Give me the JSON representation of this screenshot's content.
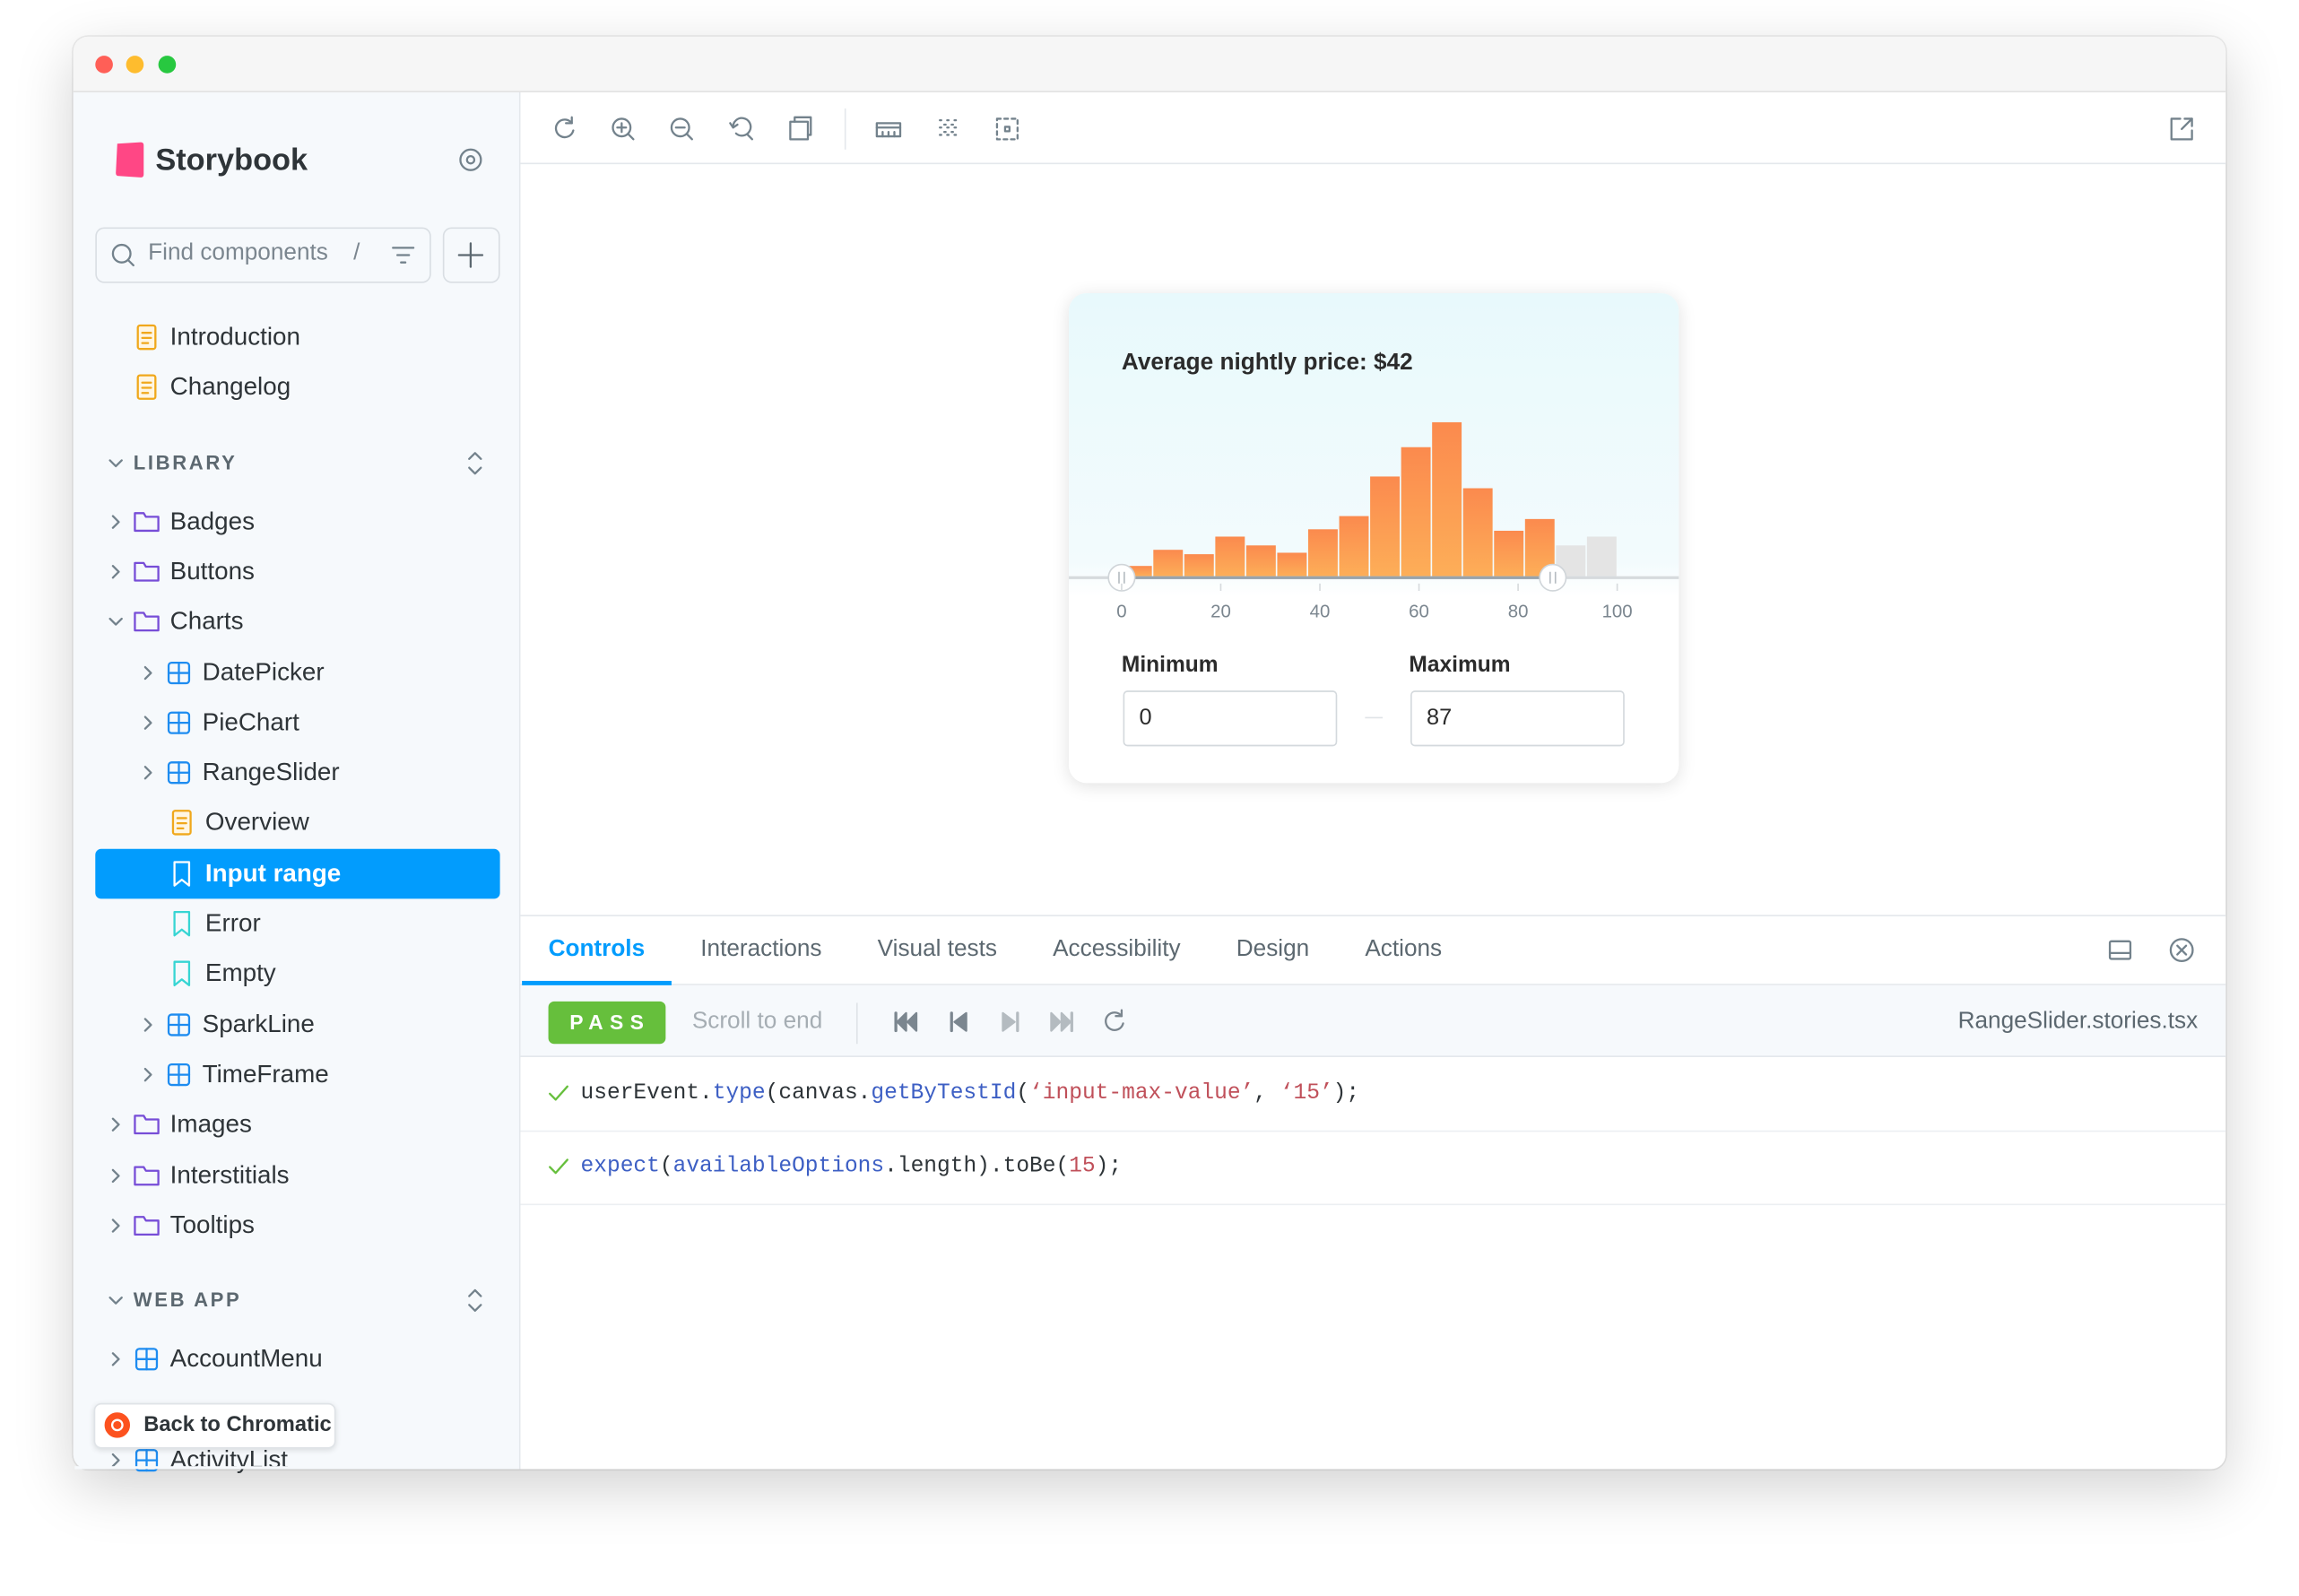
{
  "window": {
    "sidebar": {
      "brand": "Storybook",
      "search_placeholder": "Find components",
      "search_shortcut": "/",
      "tree": [
        {
          "label": "Introduction",
          "kind": "doc",
          "depth": 0
        },
        {
          "label": "Changelog",
          "kind": "doc",
          "depth": 0
        },
        {
          "label": "LIBRARY",
          "kind": "section",
          "depth": 0,
          "expanded": true
        },
        {
          "label": "Badges",
          "kind": "folder",
          "depth": 0,
          "expanded": false
        },
        {
          "label": "Buttons",
          "kind": "folder",
          "depth": 0,
          "expanded": false
        },
        {
          "label": "Charts",
          "kind": "folder",
          "depth": 0,
          "expanded": true
        },
        {
          "label": "DatePicker",
          "kind": "component",
          "depth": 1,
          "expanded": false
        },
        {
          "label": "PieChart",
          "kind": "component",
          "depth": 1,
          "expanded": false
        },
        {
          "label": "RangeSlider",
          "kind": "component",
          "depth": 1,
          "expanded": false
        },
        {
          "label": "Overview",
          "kind": "doc",
          "depth": 2
        },
        {
          "label": "Input range",
          "kind": "story",
          "depth": 2,
          "selected": true
        },
        {
          "label": "Error",
          "kind": "story",
          "depth": 2
        },
        {
          "label": "Empty",
          "kind": "story",
          "depth": 2
        },
        {
          "label": "SparkLine",
          "kind": "component",
          "depth": 1,
          "expanded": false
        },
        {
          "label": "TimeFrame",
          "kind": "component",
          "depth": 1,
          "expanded": false
        },
        {
          "label": "Images",
          "kind": "folder",
          "depth": 0,
          "expanded": false
        },
        {
          "label": "Interstitials",
          "kind": "folder",
          "depth": 0,
          "expanded": false
        },
        {
          "label": "Tooltips",
          "kind": "folder",
          "depth": 0,
          "expanded": false
        },
        {
          "label": "WEB APP",
          "kind": "section",
          "depth": 0,
          "expanded": true
        },
        {
          "label": "AccountMenu",
          "kind": "component",
          "depth": 0,
          "expanded": false
        },
        {
          "label": "ActivityList",
          "kind": "component",
          "depth": 0,
          "expanded": false
        }
      ],
      "back_button": "Back to Chromatic"
    },
    "preview": {
      "title": "Average nightly price: $42",
      "histogram": {
        "values": [
          7,
          18,
          15,
          27,
          21,
          16,
          32,
          41,
          68,
          88,
          105,
          60,
          31,
          39,
          21,
          27
        ],
        "xlim": [
          0,
          100
        ],
        "xticks": [
          0,
          20,
          40,
          60,
          80,
          100
        ],
        "color": "#fb8a4e",
        "color_out_of_range": "#e4e4e4"
      },
      "minimum": {
        "label": "Minimum",
        "value": 0
      },
      "maximum": {
        "label": "Maximum",
        "value": 87
      }
    },
    "panel": {
      "tabs": [
        "Controls",
        "Interactions",
        "Visual tests",
        "Accessibility",
        "Design",
        "Actions"
      ],
      "active_tab": 0,
      "status": "PASS",
      "scroll_to_end": "Scroll to end",
      "file": "RangeSlider.stories.tsx",
      "steps": [
        [
          {
            "text": "userEvent.",
            "kind": "plain"
          },
          {
            "text": "type",
            "kind": "fn"
          },
          {
            "text": "(canvas.",
            "kind": "plain"
          },
          {
            "text": "getByTestId",
            "kind": "fn"
          },
          {
            "text": "(",
            "kind": "plain"
          },
          {
            "text": "‘input-max-value’",
            "kind": "str"
          },
          {
            "text": ", ",
            "kind": "plain"
          },
          {
            "text": "‘15’",
            "kind": "str"
          },
          {
            "text": ");",
            "kind": "plain"
          }
        ],
        [
          {
            "text": "expect",
            "kind": "fn"
          },
          {
            "text": "(",
            "kind": "plain"
          },
          {
            "text": "availableOptions",
            "kind": "fn"
          },
          {
            "text": ".length).toBe(",
            "kind": "plain"
          },
          {
            "text": "15",
            "kind": "str"
          },
          {
            "text": ");",
            "kind": "plain"
          }
        ]
      ]
    }
  }
}
